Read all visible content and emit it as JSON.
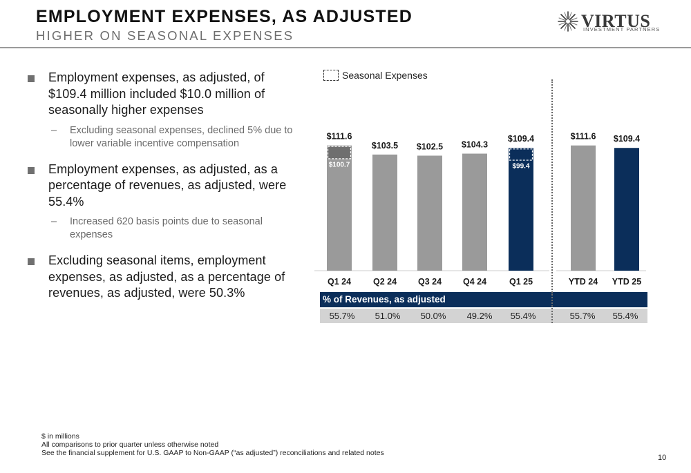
{
  "header": {
    "title": "EMPLOYMENT EXPENSES, AS ADJUSTED",
    "subtitle": "HIGHER ON SEASONAL EXPENSES"
  },
  "logo": {
    "wordmark": "VIRTUS",
    "tagline": "INVESTMENT PARTNERS"
  },
  "bullets": [
    {
      "text": "Employment expenses, as adjusted, of $109.4 million included $10.0 million of seasonally higher expenses",
      "sub": "Excluding seasonal expenses, declined 5% due to lower variable incentive compensation"
    },
    {
      "text": "Employment expenses, as adjusted, as a percentage of revenues, as adjusted, were 55.4%",
      "sub": "Increased 620 basis points due to seasonal expenses"
    },
    {
      "text": "Excluding seasonal items, employment expenses, as adjusted, as a percentage of revenues, as adjusted, were 50.3%",
      "sub": ""
    }
  ],
  "chart_data": {
    "type": "bar",
    "categories": [
      "Q1 24",
      "Q2 24",
      "Q3 24",
      "Q4 24",
      "Q1 25",
      "YTD 24",
      "YTD 25"
    ],
    "values": [
      111.6,
      103.5,
      102.5,
      104.3,
      109.4,
      111.6,
      109.4
    ],
    "value_labels": [
      "$111.6",
      "$103.5",
      "$102.5",
      "$104.3",
      "$109.4",
      "$111.6",
      "$109.4"
    ],
    "seasonal": [
      {
        "category": "Q1 24",
        "base": 100.7,
        "label": "$100.7"
      },
      {
        "category": "Q1 25",
        "base": 99.4,
        "label": "$99.4"
      }
    ],
    "legend": "Seasonal Expenses",
    "ylim": [
      0,
      120
    ],
    "grid": false,
    "colors": {
      "quarter_bar": "#9a9a9a",
      "current_bar": "#0b2e5a",
      "seasonal_outline": "#ffffff"
    }
  },
  "pct_table": {
    "header": "% of Revenues, as adjusted",
    "values": [
      "55.7%",
      "51.0%",
      "50.0%",
      "49.2%",
      "55.4%",
      "55.7%",
      "55.4%"
    ]
  },
  "footnotes": [
    "$ in millions",
    "All comparisons to prior quarter unless otherwise noted",
    "See the financial supplement for U.S. GAAP to Non-GAAP (“as adjusted”) reconciliations and related notes"
  ],
  "page_number": "10"
}
